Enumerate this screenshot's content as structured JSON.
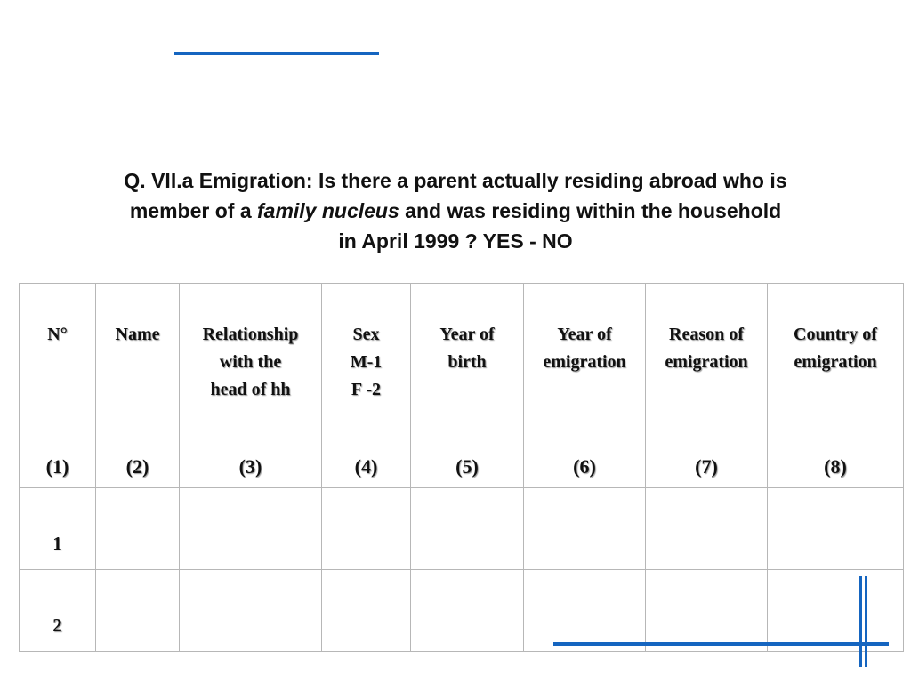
{
  "question": {
    "line1": "Q. VII.a Emigration: Is there a parent actually residing abroad  who is",
    "line2_pre": "member of a ",
    "line2_italic": "family nucleus",
    "line2_post": " and was residing within the household",
    "line3": "in April 1999 ?    YES - NO"
  },
  "table": {
    "headers": {
      "n": "N°",
      "name": "Name",
      "relationship": [
        "Relationship",
        "with the",
        "head of hh"
      ],
      "sex": [
        "Sex",
        "M-1",
        "F -2"
      ],
      "year_birth": [
        "Year of",
        "birth"
      ],
      "year_emigration": [
        "Year of",
        "emigration"
      ],
      "reason": [
        "Reason of",
        "emigration"
      ],
      "country": [
        "Country of",
        "emigration"
      ]
    },
    "column_numbers": [
      "(1)",
      "(2)",
      "(3)",
      "(4)",
      "(5)",
      "(6)",
      "(7)",
      "(8)"
    ],
    "rows": [
      "1",
      "2"
    ]
  },
  "colors": {
    "accent": "#1565c0",
    "border": "#b7b7b7"
  }
}
